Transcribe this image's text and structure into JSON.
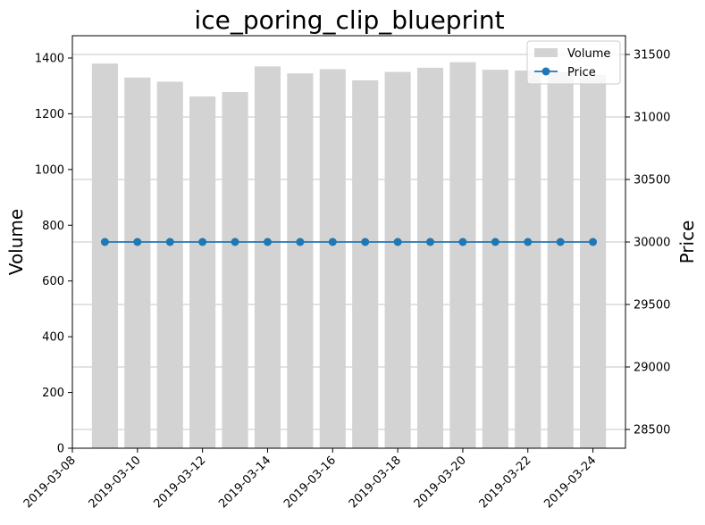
{
  "chart_data": {
    "type": "bar",
    "title": "ice_poring_clip_blueprint",
    "x": [
      "2019-03-09",
      "2019-03-10",
      "2019-03-11",
      "2019-03-12",
      "2019-03-13",
      "2019-03-14",
      "2019-03-15",
      "2019-03-16",
      "2019-03-17",
      "2019-03-18",
      "2019-03-19",
      "2019-03-20",
      "2019-03-21",
      "2019-03-22",
      "2019-03-23",
      "2019-03-24"
    ],
    "x_ticks": [
      "2019-03-08",
      "2019-03-10",
      "2019-03-12",
      "2019-03-14",
      "2019-03-16",
      "2019-03-18",
      "2019-03-20",
      "2019-03-22",
      "2019-03-24"
    ],
    "xlim": [
      "2019-03-08",
      "2019-03-25"
    ],
    "ylabel": "Volume",
    "ylim": [
      0,
      1480
    ],
    "y_ticks": [
      0,
      200,
      400,
      600,
      800,
      1000,
      1200,
      1400
    ],
    "y2label": "Price",
    "y2lim": [
      28350,
      31650
    ],
    "y2_ticks": [
      28500,
      29000,
      29500,
      30000,
      30500,
      31000,
      31500
    ],
    "grid": "horizontal lines on secondary (Price) axis",
    "legend_position": "top-right",
    "series": [
      {
        "name": "Volume",
        "kind": "bar",
        "axis": "left",
        "color": "#d3d3d3",
        "values": [
          1380,
          1330,
          1315,
          1262,
          1278,
          1370,
          1345,
          1360,
          1320,
          1350,
          1365,
          1385,
          1358,
          1355,
          1350,
          1340
        ]
      },
      {
        "name": "Price",
        "kind": "line",
        "axis": "right",
        "color": "#1f77b4",
        "marker": "circle",
        "values": [
          30000,
          30000,
          30000,
          30000,
          30000,
          30000,
          30000,
          30000,
          30000,
          30000,
          30000,
          30000,
          30000,
          30000,
          30000,
          30000
        ]
      }
    ]
  }
}
